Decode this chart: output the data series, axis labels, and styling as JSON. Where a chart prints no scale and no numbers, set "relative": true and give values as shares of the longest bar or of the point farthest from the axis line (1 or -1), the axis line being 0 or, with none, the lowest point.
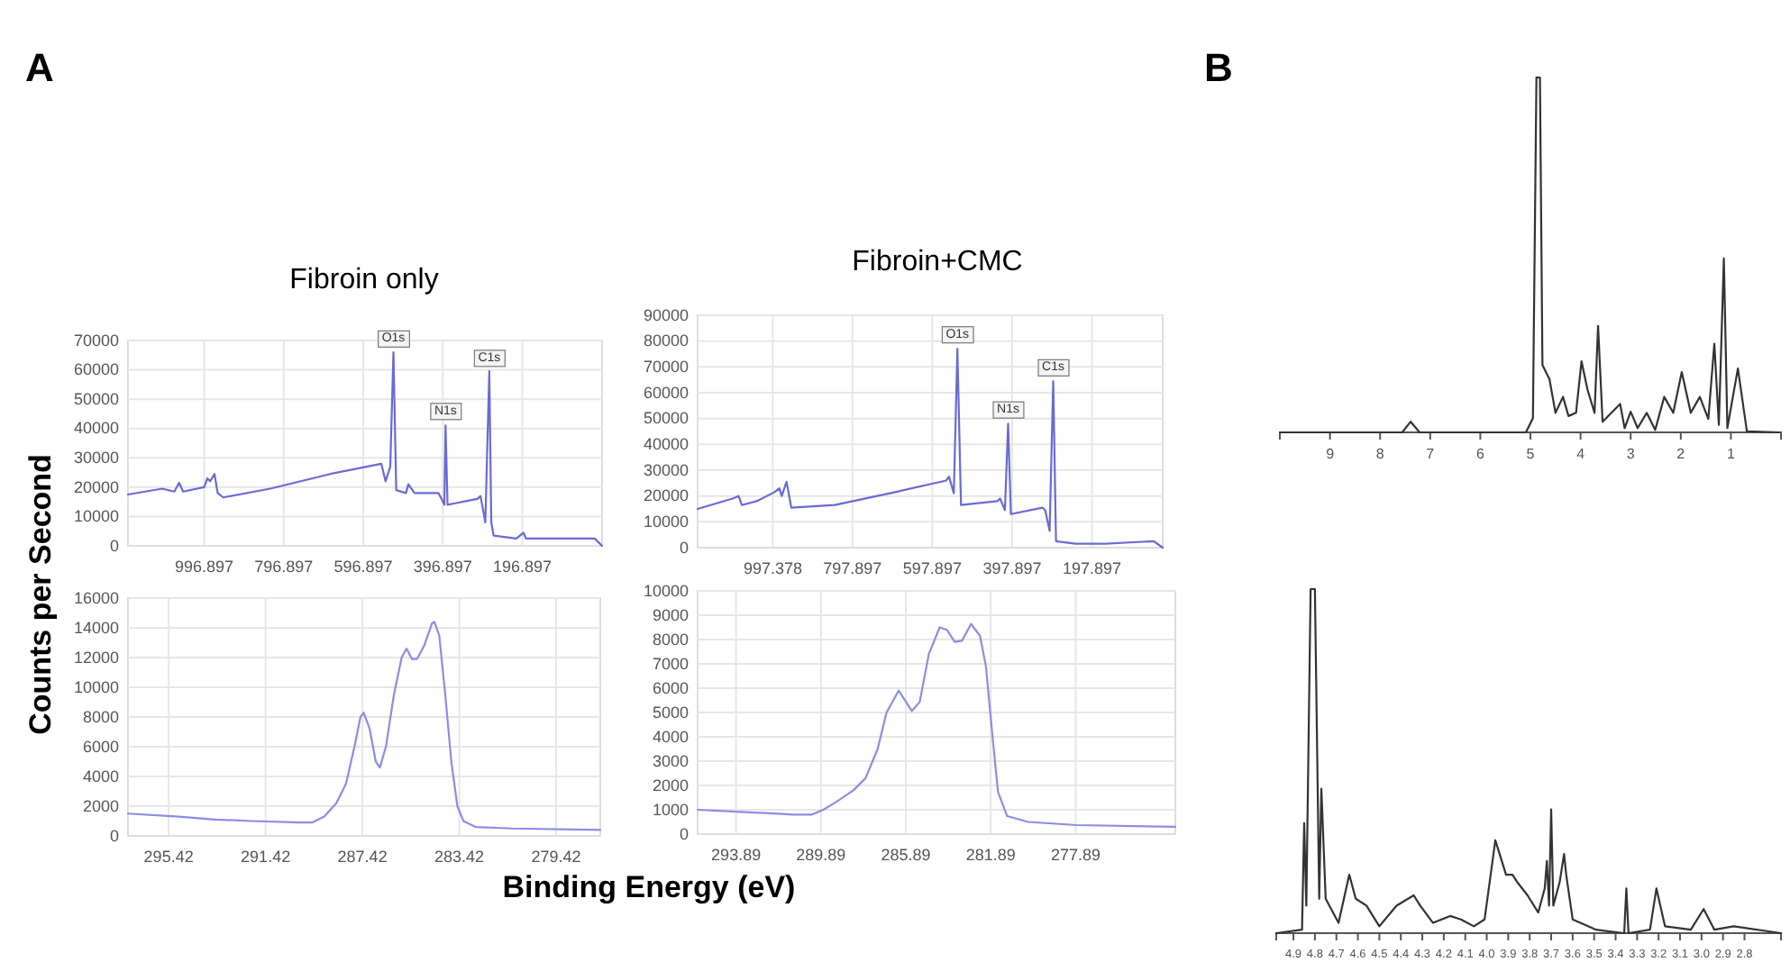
{
  "chart_data": [
    {
      "type": "line",
      "title": "Fibroin only",
      "ylabel": "Counts per Second",
      "annotations": [
        "A",
        {
          "text": "O1s",
          "x": 521,
          "y": 65900
        },
        {
          "text": "N1s",
          "x": 390,
          "y": 41200
        },
        {
          "text": "C1s",
          "x": 280,
          "y": 59300
        }
      ],
      "grid": true,
      "xlim": [
        1188.5,
        -3.6
      ],
      "ylim": [
        0,
        70000
      ],
      "xticks": [
        996.897,
        796.897,
        596.897,
        396.897,
        196.897
      ],
      "yticks": [
        0,
        10000,
        20000,
        30000,
        40000,
        50000,
        60000,
        70000
      ],
      "x": [
        1188.5,
        1102.6,
        1072,
        1060,
        1050,
        997,
        989,
        982,
        971,
        963,
        949,
        830.8,
        679.8,
        551.5,
        540.9,
        529,
        521,
        514,
        489.5,
        483.5,
        468,
        408,
        400,
        393,
        390,
        385,
        310,
        302,
        290,
        280,
        275,
        269,
        212,
        194,
        188,
        30.5,
        15,
        -3.6
      ],
      "series": [
        {
          "color": "#6a6ad6",
          "values": [
            17500,
            19500,
            18500,
            21500,
            18500,
            20000,
            23000,
            22000,
            24500,
            18000,
            16500,
            19500,
            24500,
            28000,
            22000,
            27000,
            66000,
            19000,
            18000,
            21000,
            18000,
            18000,
            16000,
            14000,
            41000,
            14000,
            16000,
            17000,
            8000,
            59500,
            8000,
            3500,
            2500,
            4500,
            2500,
            2500,
            2500,
            0
          ]
        }
      ]
    },
    {
      "type": "line",
      "title": "Fibroin+CMC",
      "annotations": [
        {
          "text": "O1s",
          "x": 535,
          "y": 77200
        },
        {
          "text": "N1s",
          "x": 408,
          "y": 48100
        },
        {
          "text": "C1s",
          "x": 295,
          "y": 64400
        }
      ],
      "grid": true,
      "xlim": [
        1185.7,
        20.8
      ],
      "ylim": [
        0,
        90000
      ],
      "xticks": [
        997.378,
        797.897,
        597.897,
        397.897,
        197.897
      ],
      "yticks": [
        0,
        10000,
        20000,
        30000,
        40000,
        50000,
        60000,
        70000,
        80000,
        90000
      ],
      "x": [
        1185.7,
        1098,
        1083,
        1075,
        1038,
        993,
        981,
        975,
        963,
        951,
        842,
        691,
        563,
        556,
        544,
        535,
        526,
        435,
        428,
        416,
        408,
        401,
        322,
        315,
        304,
        295,
        288,
        239,
        164,
        43,
        20.8
      ],
      "series": [
        {
          "color": "#6a6ad6",
          "values": [
            15000,
            19000,
            20000,
            16500,
            18000,
            21500,
            23000,
            20000,
            25500,
            15500,
            16500,
            21500,
            26000,
            27500,
            21000,
            77000,
            16500,
            18000,
            19000,
            14500,
            48000,
            13000,
            15500,
            14500,
            6500,
            64500,
            2500,
            1500,
            1500,
            2500,
            0
          ]
        }
      ]
    },
    {
      "type": "line",
      "grid": true,
      "xlim": [
        297.1,
        277.6
      ],
      "ylim": [
        0,
        16000
      ],
      "xticks": [
        295.42,
        291.42,
        287.42,
        283.42,
        279.42
      ],
      "yticks": [
        0,
        2000,
        4000,
        6000,
        8000,
        10000,
        12000,
        14000,
        16000
      ],
      "x": [
        297.1,
        295.0,
        293.5,
        292.0,
        290.0,
        289.5,
        289.0,
        288.5,
        288.1,
        287.75,
        287.5,
        287.37,
        287.12,
        286.87,
        286.7,
        286.45,
        286.12,
        285.8,
        285.6,
        285.37,
        285.17,
        284.87,
        284.55,
        284.45,
        284.25,
        284.0,
        283.75,
        283.5,
        283.25,
        282.75,
        281.25,
        277.6
      ],
      "series": [
        {
          "color": "#8c8ce6",
          "values": [
            1500,
            1300,
            1100,
            1000,
            900,
            900,
            1300,
            2200,
            3500,
            6000,
            8000,
            8300,
            7200,
            5000,
            4600,
            6000,
            9500,
            12000,
            12600,
            11900,
            11900,
            12800,
            14300,
            14400,
            13500,
            9500,
            5000,
            2000,
            1000,
            600,
            500,
            400
          ]
        }
      ]
    },
    {
      "type": "line",
      "xlabel": "Binding Energy (eV)",
      "grid": true,
      "xlim": [
        295.7,
        273.2
      ],
      "ylim": [
        0,
        10000
      ],
      "xticks": [
        293.89,
        289.89,
        285.89,
        281.89,
        277.89
      ],
      "yticks": [
        0,
        1000,
        2000,
        3000,
        4000,
        5000,
        6000,
        7000,
        8000,
        9000,
        10000
      ],
      "x": [
        295.7,
        293.46,
        292.05,
        291.2,
        290.34,
        289.78,
        289.21,
        288.36,
        287.79,
        287.22,
        286.8,
        286.23,
        285.61,
        285.24,
        284.81,
        284.3,
        283.96,
        283.59,
        283.25,
        282.82,
        282.4,
        282.12,
        281.83,
        281.55,
        281.12,
        280.13,
        277.86,
        273.2
      ],
      "series": [
        {
          "color": "#8c8ce6",
          "values": [
            1000,
            900,
            850,
            800,
            800,
            1000,
            1300,
            1800,
            2300,
            3500,
            5000,
            5900,
            5060,
            5430,
            7400,
            8500,
            8400,
            7900,
            7950,
            8640,
            8150,
            6900,
            4200,
            1730,
            740,
            500,
            370,
            300
          ]
        }
      ]
    },
    {
      "type": "line",
      "relative": true,
      "annotations": [
        "B"
      ],
      "xlim": [
        10,
        0
      ],
      "xticks": [
        9,
        8,
        7,
        6,
        5,
        4,
        3,
        2,
        1
      ],
      "x": [
        10,
        7.56,
        7.39,
        7.21,
        5.09,
        4.95,
        4.88,
        4.81,
        4.76,
        4.62,
        4.5,
        4.35,
        4.24,
        4.09,
        3.98,
        3.86,
        3.72,
        3.65,
        3.56,
        3.21,
        3.12,
        3.0,
        2.86,
        2.68,
        2.51,
        2.33,
        2.15,
        1.98,
        1.8,
        1.62,
        1.45,
        1.33,
        1.24,
        1.14,
        1.07,
        0.86,
        0.68,
        0.04
      ],
      "series": [
        {
          "color": "#333333",
          "values": [
            0,
            0,
            0.03,
            0,
            0,
            0.04,
            1,
            1,
            0.19,
            0.15,
            0.055,
            0.1,
            0.046,
            0.055,
            0.2,
            0.12,
            0.055,
            0.3,
            0.03,
            0.08,
            0.012,
            0.058,
            0.012,
            0.055,
            0.007,
            0.1,
            0.055,
            0.17,
            0.055,
            0.1,
            0.038,
            0.25,
            0.021,
            0.49,
            0.012,
            0.18,
            0.003,
            0
          ]
        }
      ]
    },
    {
      "type": "line",
      "relative": true,
      "xlim": [
        4.98,
        2.63
      ],
      "xticks": [
        4.9,
        4.8,
        4.7,
        4.6,
        4.5,
        4.4,
        4.3,
        4.2,
        4.1,
        {
          "value": 4,
          "label": "4.0"
        },
        3.9,
        3.8,
        3.7,
        3.6,
        3.5,
        3.4,
        3.3,
        3.2,
        3.1,
        {
          "value": 3,
          "label": "3.0"
        },
        2.9,
        2.8
      ],
      "x": [
        4.98,
        4.86,
        4.85,
        4.84,
        4.82,
        4.8,
        4.78,
        4.77,
        4.75,
        4.69,
        4.64,
        4.61,
        4.56,
        4.5,
        4.42,
        4.34,
        4.31,
        4.25,
        4.17,
        4.12,
        4.06,
        4.01,
        3.96,
        3.91,
        3.88,
        3.86,
        3.81,
        3.76,
        3.73,
        3.72,
        3.71,
        3.7,
        3.69,
        3.66,
        3.64,
        3.63,
        3.6,
        3.49,
        3.36,
        3.35,
        3.34,
        3.24,
        3.21,
        3.17,
        3.05,
        2.99,
        2.94,
        2.85,
        2.63
      ],
      "series": [
        {
          "color": "#333333",
          "values": [
            0,
            0.01,
            0.32,
            0.08,
            1,
            1,
            0.1,
            0.42,
            0.1,
            0.03,
            0.17,
            0.1,
            0.08,
            0.02,
            0.08,
            0.11,
            0.08,
            0.03,
            0.05,
            0.04,
            0.02,
            0.04,
            0.27,
            0.17,
            0.17,
            0.15,
            0.11,
            0.06,
            0.13,
            0.21,
            0.08,
            0.36,
            0.08,
            0.15,
            0.23,
            0.17,
            0.04,
            0.01,
            0,
            0.13,
            0,
            0.01,
            0.13,
            0.02,
            0.01,
            0.07,
            0.01,
            0.02,
            0
          ]
        }
      ]
    }
  ]
}
